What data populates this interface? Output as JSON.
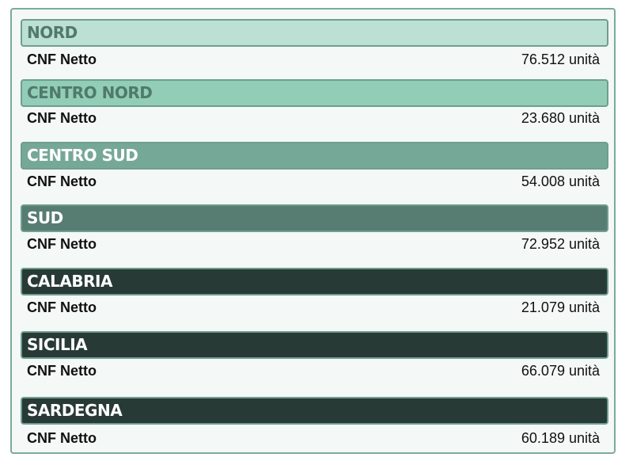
{
  "regions": [
    {
      "name": "NORD",
      "metric": "CNF Netto",
      "value": "76.512 unità",
      "bg": "#bde0d4",
      "fg": "#4f7a6c"
    },
    {
      "name": "CENTRO NORD",
      "metric": "CNF Netto",
      "value": "23.680 unità",
      "bg": "#92cdb7",
      "fg": "#4f7a6c"
    },
    {
      "name": "CENTRO SUD",
      "metric": "CNF Netto",
      "value": "54.008 unità",
      "bg": "#76a897",
      "fg": "#ffffff"
    },
    {
      "name": "SUD",
      "metric": "CNF Netto",
      "value": "72.952 unità",
      "bg": "#577c71",
      "fg": "#ffffff"
    },
    {
      "name": "CALABRIA",
      "metric": "CNF Netto",
      "value": "21.079 unità",
      "bg": "#283a35",
      "fg": "#ffffff"
    },
    {
      "name": "SICILIA",
      "metric": "CNF Netto",
      "value": "66.079 unità",
      "bg": "#283a35",
      "fg": "#ffffff"
    },
    {
      "name": "SARDEGNA",
      "metric": "CNF Netto",
      "value": "60.189 unità",
      "bg": "#283a35",
      "fg": "#ffffff"
    }
  ]
}
